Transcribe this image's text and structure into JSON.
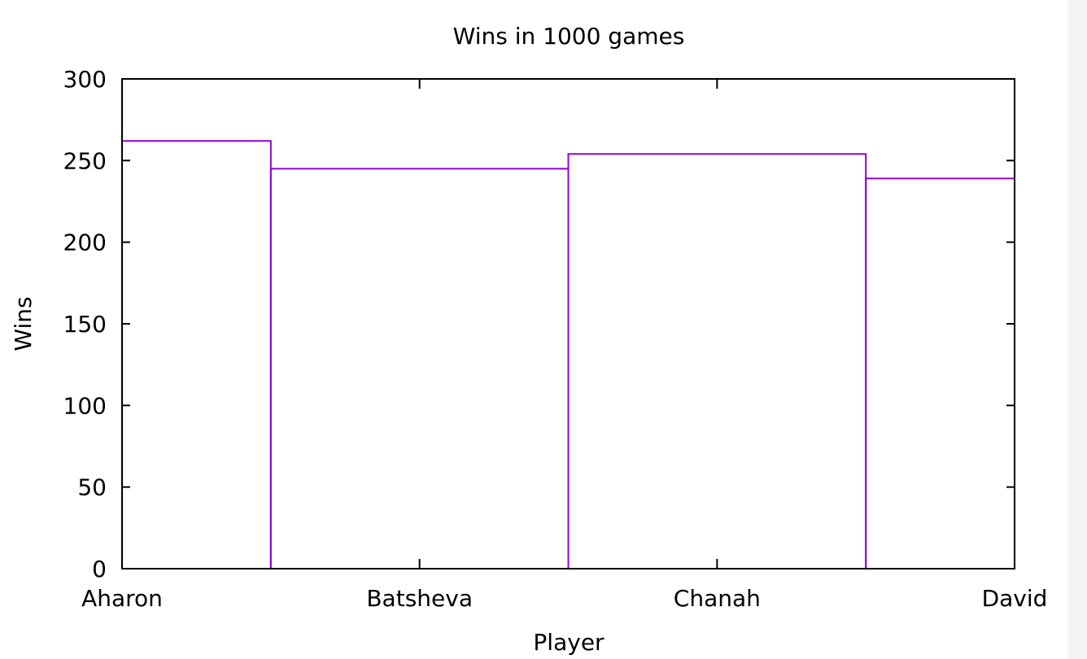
{
  "chart_data": {
    "type": "bar",
    "title": "Wins in 1000 games",
    "xlabel": "Player",
    "ylabel": "Wins",
    "categories": [
      "Aharon",
      "Batsheva",
      "Chanah",
      "David"
    ],
    "values": [
      262,
      245,
      254,
      239
    ],
    "ylim": [
      0,
      300
    ],
    "yticks": [
      "0",
      "50",
      "100",
      "150",
      "200",
      "250",
      "300"
    ],
    "style": "step",
    "grid": false,
    "legend": "none",
    "bar_color": "#9400d3",
    "axis_color": "#000000"
  }
}
